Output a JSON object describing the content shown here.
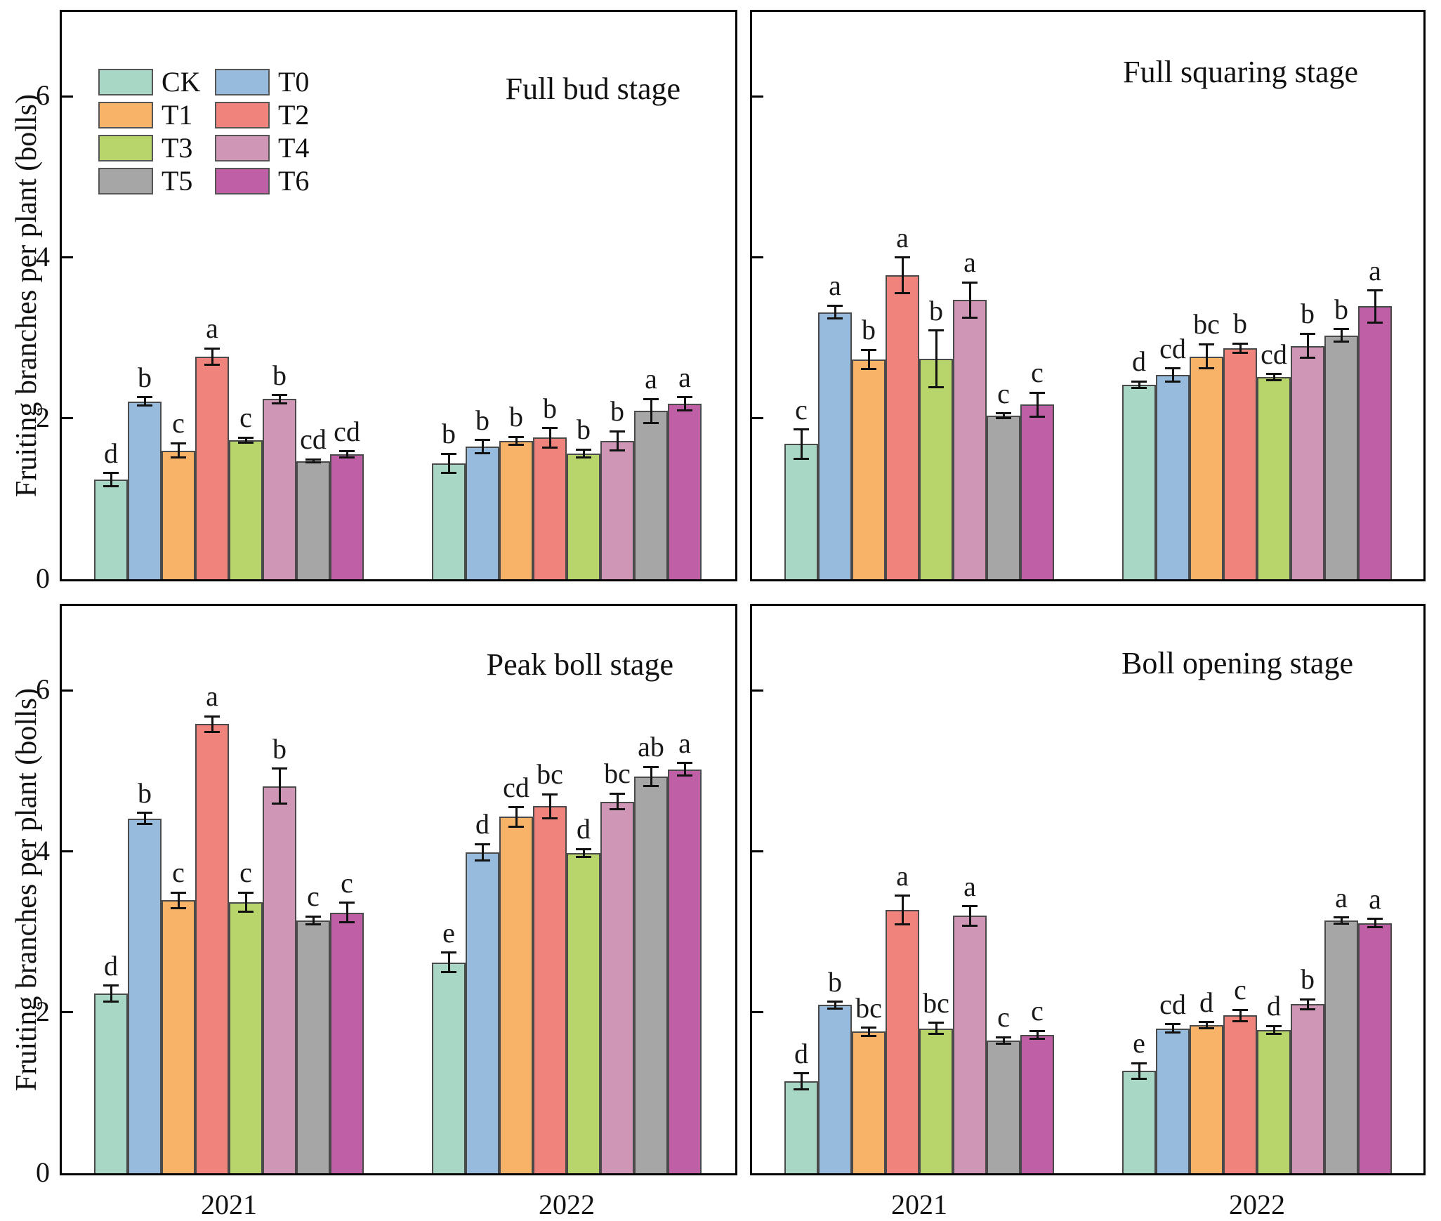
{
  "figure": {
    "y_axis_label": "Fruiting branches per plant (bolls)",
    "y_tick_labels": [
      "0",
      "2",
      "4",
      "6"
    ],
    "x_tick_labels": [
      "2021",
      "2022"
    ],
    "background": "#ffffff",
    "axis_color": "#000000"
  },
  "legend": {
    "items": [
      {
        "label": "CK",
        "color": "#a8d7c6"
      },
      {
        "label": "T0",
        "color": "#97bbdc"
      },
      {
        "label": "T1",
        "color": "#f9b368"
      },
      {
        "label": "T2",
        "color": "#f0837c"
      },
      {
        "label": "T3",
        "color": "#b8d56b"
      },
      {
        "label": "T4",
        "color": "#d096b5"
      },
      {
        "label": "T5",
        "color": "#a6a6a6"
      },
      {
        "label": "T6",
        "color": "#bf60a6"
      }
    ]
  },
  "chart_data": [
    {
      "type": "bar",
      "title": "Full bud stage",
      "categories": [
        "2021",
        "2022"
      ],
      "ylim": [
        0,
        7.05
      ],
      "yticks": [
        0,
        2,
        4,
        6
      ],
      "ylabel": "Fruiting branches per plant (bolls)",
      "legend_position": "upper-left",
      "grid": false,
      "series": [
        {
          "name": "CK",
          "values": [
            1.24,
            1.44
          ],
          "errors": [
            0.08,
            0.12
          ],
          "letters": [
            "d",
            "b"
          ]
        },
        {
          "name": "T0",
          "values": [
            2.21,
            1.65
          ],
          "errors": [
            0.05,
            0.08
          ],
          "letters": [
            "b",
            "b"
          ]
        },
        {
          "name": "T1",
          "values": [
            1.6,
            1.72
          ],
          "errors": [
            0.09,
            0.05
          ],
          "letters": [
            "c",
            "b"
          ]
        },
        {
          "name": "T2",
          "values": [
            2.77,
            1.76
          ],
          "errors": [
            0.1,
            0.12
          ],
          "letters": [
            "a",
            "b"
          ]
        },
        {
          "name": "T3",
          "values": [
            1.73,
            1.56
          ],
          "errors": [
            0.03,
            0.05
          ],
          "letters": [
            "c",
            "b"
          ]
        },
        {
          "name": "T4",
          "values": [
            2.24,
            1.72
          ],
          "errors": [
            0.05,
            0.12
          ],
          "letters": [
            "b",
            "b"
          ]
        },
        {
          "name": "T5",
          "values": [
            1.47,
            2.09
          ],
          "errors": [
            0.02,
            0.15
          ],
          "letters": [
            "cd",
            "a"
          ]
        },
        {
          "name": "T6",
          "values": [
            1.55,
            2.18
          ],
          "errors": [
            0.04,
            0.08
          ],
          "letters": [
            "cd",
            "a"
          ]
        }
      ]
    },
    {
      "type": "bar",
      "title": "Full squaring stage",
      "categories": [
        "2021",
        "2022"
      ],
      "ylim": [
        0,
        7.05
      ],
      "yticks": [
        0,
        2,
        4,
        6
      ],
      "grid": false,
      "series": [
        {
          "name": "CK",
          "values": [
            1.68,
            2.42
          ],
          "errors": [
            0.18,
            0.04
          ],
          "letters": [
            "c",
            "d"
          ]
        },
        {
          "name": "T0",
          "values": [
            3.32,
            2.54
          ],
          "errors": [
            0.08,
            0.08
          ],
          "letters": [
            "a",
            "cd"
          ]
        },
        {
          "name": "T1",
          "values": [
            2.73,
            2.77
          ],
          "errors": [
            0.12,
            0.15
          ],
          "letters": [
            "b",
            "bc"
          ]
        },
        {
          "name": "T2",
          "values": [
            3.78,
            2.87
          ],
          "errors": [
            0.22,
            0.06
          ],
          "letters": [
            "a",
            "b"
          ]
        },
        {
          "name": "T3",
          "values": [
            2.74,
            2.51
          ],
          "errors": [
            0.35,
            0.04
          ],
          "letters": [
            "b",
            "cd"
          ]
        },
        {
          "name": "T4",
          "values": [
            3.47,
            2.9
          ],
          "errors": [
            0.22,
            0.15
          ],
          "letters": [
            "a",
            "b"
          ]
        },
        {
          "name": "T5",
          "values": [
            2.03,
            3.03
          ],
          "errors": [
            0.03,
            0.08
          ],
          "letters": [
            "c",
            "b"
          ]
        },
        {
          "name": "T6",
          "values": [
            2.17,
            3.39
          ],
          "errors": [
            0.15,
            0.2
          ],
          "letters": [
            "c",
            "a"
          ]
        }
      ]
    },
    {
      "type": "bar",
      "title": "Peak boll stage",
      "categories": [
        "2021",
        "2022"
      ],
      "ylim": [
        0,
        7.05
      ],
      "yticks": [
        0,
        2,
        4,
        6
      ],
      "ylabel": "Fruiting branches per plant (bolls)",
      "grid": false,
      "series": [
        {
          "name": "CK",
          "values": [
            2.23,
            2.62
          ],
          "errors": [
            0.1,
            0.12
          ],
          "letters": [
            "d",
            "e"
          ]
        },
        {
          "name": "T0",
          "values": [
            4.41,
            3.99
          ],
          "errors": [
            0.07,
            0.1
          ],
          "letters": [
            "b",
            "d"
          ]
        },
        {
          "name": "T1",
          "values": [
            3.39,
            4.43
          ],
          "errors": [
            0.1,
            0.12
          ],
          "letters": [
            "c",
            "cd"
          ]
        },
        {
          "name": "T2",
          "values": [
            5.58,
            4.56
          ],
          "errors": [
            0.1,
            0.15
          ],
          "letters": [
            "a",
            "bc"
          ]
        },
        {
          "name": "T3",
          "values": [
            3.37,
            3.98
          ],
          "errors": [
            0.12,
            0.05
          ],
          "letters": [
            "c",
            "d"
          ]
        },
        {
          "name": "T4",
          "values": [
            4.81,
            4.62
          ],
          "errors": [
            0.22,
            0.1
          ],
          "letters": [
            "b",
            "bc"
          ]
        },
        {
          "name": "T5",
          "values": [
            3.14,
            4.93
          ],
          "errors": [
            0.05,
            0.12
          ],
          "letters": [
            "c",
            "ab"
          ]
        },
        {
          "name": "T6",
          "values": [
            3.24,
            5.02
          ],
          "errors": [
            0.12,
            0.08
          ],
          "letters": [
            "c",
            "a"
          ]
        }
      ]
    },
    {
      "type": "bar",
      "title": "Boll opening stage",
      "categories": [
        "2021",
        "2022"
      ],
      "ylim": [
        0,
        7.05
      ],
      "yticks": [
        0,
        2,
        4,
        6
      ],
      "grid": false,
      "series": [
        {
          "name": "CK",
          "values": [
            1.14,
            1.27
          ],
          "errors": [
            0.1,
            0.1
          ],
          "letters": [
            "d",
            "e"
          ]
        },
        {
          "name": "T0",
          "values": [
            2.09,
            1.8
          ],
          "errors": [
            0.04,
            0.05
          ],
          "letters": [
            "b",
            "cd"
          ]
        },
        {
          "name": "T1",
          "values": [
            1.76,
            1.84
          ],
          "errors": [
            0.05,
            0.04
          ],
          "letters": [
            "bc",
            "d"
          ]
        },
        {
          "name": "T2",
          "values": [
            3.27,
            1.96
          ],
          "errors": [
            0.18,
            0.07
          ],
          "letters": [
            "a",
            "c"
          ]
        },
        {
          "name": "T3",
          "values": [
            1.8,
            1.78
          ],
          "errors": [
            0.07,
            0.05
          ],
          "letters": [
            "bc",
            "d"
          ]
        },
        {
          "name": "T4",
          "values": [
            3.2,
            2.1
          ],
          "errors": [
            0.12,
            0.06
          ],
          "letters": [
            "a",
            "b"
          ]
        },
        {
          "name": "T5",
          "values": [
            1.65,
            3.14
          ],
          "errors": [
            0.04,
            0.04
          ],
          "letters": [
            "c",
            "a"
          ]
        },
        {
          "name": "T6",
          "values": [
            1.72,
            3.11
          ],
          "errors": [
            0.05,
            0.05
          ],
          "letters": [
            "c",
            "a"
          ]
        }
      ]
    }
  ]
}
